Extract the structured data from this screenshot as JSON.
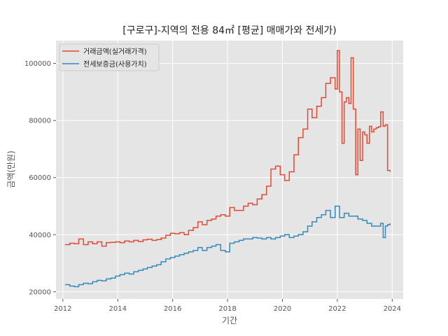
{
  "chart_data": {
    "type": "line",
    "step": true,
    "title": "[구로구]-지역의 전용 84㎡ [평균] 매매가와 전세가)",
    "xlabel": "기간",
    "ylabel": "금액(만원)",
    "xlim": [
      2011.75,
      2024.4
    ],
    "ylim": [
      17500,
      108000
    ],
    "xticks": [
      2012,
      2014,
      2016,
      2018,
      2020,
      2022,
      2024
    ],
    "yticks": [
      20000,
      40000,
      60000,
      80000,
      100000
    ],
    "grid": true,
    "legend_position": "top-left",
    "series": [
      {
        "name": "거래금액(실거래가격)",
        "color": "#E24A33",
        "x": [
          2012.08,
          2012.25,
          2012.42,
          2012.58,
          2012.75,
          2012.92,
          2013.08,
          2013.25,
          2013.42,
          2013.58,
          2013.75,
          2013.92,
          2014.08,
          2014.25,
          2014.42,
          2014.58,
          2014.75,
          2014.92,
          2015.08,
          2015.25,
          2015.42,
          2015.58,
          2015.75,
          2015.92,
          2016.08,
          2016.25,
          2016.42,
          2016.58,
          2016.75,
          2016.92,
          2017.08,
          2017.25,
          2017.42,
          2017.58,
          2017.75,
          2017.92,
          2018.08,
          2018.25,
          2018.42,
          2018.58,
          2018.75,
          2018.92,
          2019.08,
          2019.25,
          2019.42,
          2019.58,
          2019.75,
          2019.92,
          2020.08,
          2020.25,
          2020.42,
          2020.58,
          2020.75,
          2020.92,
          2021.08,
          2021.25,
          2021.42,
          2021.58,
          2021.75,
          2021.92,
          2022.0,
          2022.08,
          2022.17,
          2022.25,
          2022.33,
          2022.42,
          2022.5,
          2022.58,
          2022.67,
          2022.75,
          2022.83,
          2022.92,
          2023.0,
          2023.08,
          2023.17,
          2023.25,
          2023.33,
          2023.42,
          2023.5,
          2023.58,
          2023.67,
          2023.75,
          2023.83,
          2023.92
        ],
        "y": [
          36500,
          37000,
          36800,
          38500,
          36500,
          37500,
          36800,
          37500,
          36000,
          37200,
          37300,
          37500,
          37200,
          37800,
          37500,
          38000,
          37600,
          38200,
          38400,
          38000,
          38300,
          38800,
          39800,
          40500,
          40300,
          40700,
          40000,
          41500,
          42500,
          44500,
          43500,
          45000,
          45500,
          46500,
          47000,
          46500,
          49500,
          48500,
          48500,
          50000,
          51000,
          50500,
          52500,
          54000,
          57000,
          63000,
          64000,
          61000,
          59000,
          62000,
          68000,
          74000,
          77000,
          84000,
          81000,
          85000,
          88000,
          93000,
          95000,
          91000,
          104500,
          90000,
          72000,
          86500,
          88000,
          86000,
          102000,
          84000,
          61000,
          77000,
          66000,
          76000,
          75000,
          72000,
          78000,
          76000,
          77000,
          77500,
          77800,
          83000,
          78000,
          78500,
          62500,
          62000
        ]
      },
      {
        "name": "전세보증금(사용가치)",
        "color": "#348ABD",
        "x": [
          2012.08,
          2012.25,
          2012.42,
          2012.58,
          2012.75,
          2012.92,
          2013.08,
          2013.25,
          2013.42,
          2013.58,
          2013.75,
          2013.92,
          2014.08,
          2014.25,
          2014.42,
          2014.58,
          2014.75,
          2014.92,
          2015.08,
          2015.25,
          2015.42,
          2015.58,
          2015.75,
          2015.92,
          2016.08,
          2016.25,
          2016.42,
          2016.58,
          2016.75,
          2016.92,
          2017.08,
          2017.25,
          2017.42,
          2017.58,
          2017.75,
          2017.92,
          2018.08,
          2018.25,
          2018.42,
          2018.58,
          2018.75,
          2018.92,
          2019.08,
          2019.25,
          2019.42,
          2019.58,
          2019.75,
          2019.92,
          2020.08,
          2020.25,
          2020.42,
          2020.58,
          2020.75,
          2020.92,
          2021.08,
          2021.25,
          2021.42,
          2021.58,
          2021.75,
          2021.92,
          2022.08,
          2022.25,
          2022.42,
          2022.58,
          2022.75,
          2022.92,
          2023.08,
          2023.25,
          2023.42,
          2023.58,
          2023.67,
          2023.75,
          2023.83,
          2023.92
        ],
        "y": [
          22500,
          22000,
          21800,
          22500,
          23000,
          22800,
          23500,
          24000,
          23800,
          24500,
          24800,
          25500,
          26000,
          26500,
          26200,
          27000,
          27500,
          28000,
          28500,
          29000,
          29500,
          30500,
          31500,
          32000,
          32500,
          33000,
          33500,
          34000,
          34500,
          35500,
          34500,
          35500,
          36000,
          36500,
          34500,
          34000,
          37000,
          37500,
          38000,
          38500,
          38500,
          39000,
          38800,
          38500,
          39000,
          38500,
          39000,
          39500,
          40000,
          39000,
          39500,
          40000,
          41000,
          43000,
          44500,
          46000,
          47000,
          48500,
          46000,
          50000,
          46000,
          47500,
          46500,
          46500,
          45500,
          45000,
          44000,
          43000,
          43000,
          44000,
          39000,
          43000,
          43500,
          44000
        ]
      }
    ]
  }
}
